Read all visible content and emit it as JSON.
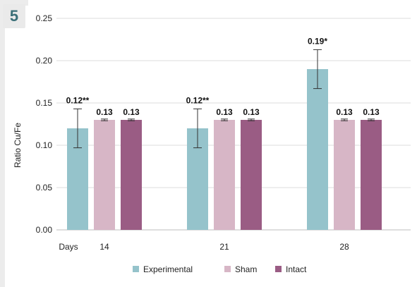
{
  "panel_label": "5",
  "chart_data": {
    "type": "bar",
    "ylabel": "Ratio Cu/Fe",
    "xlabel": "Days",
    "categories": [
      "14",
      "21",
      "28"
    ],
    "ylim": [
      0,
      0.25
    ],
    "yticks": [
      "0.00",
      "0.05",
      "0.10",
      "0.15",
      "0.20",
      "0.25"
    ],
    "grid": true,
    "legend_position": "bottom",
    "series": [
      {
        "name": "Experimental",
        "color": "#95c3cb",
        "values": [
          0.12,
          0.12,
          0.19
        ],
        "errors": [
          0.023,
          0.023,
          0.023
        ],
        "labels": [
          "0.12**",
          "0.12**",
          "0.19*"
        ]
      },
      {
        "name": "Sham",
        "color": "#d7b6c6",
        "values": [
          0.13,
          0.13,
          0.13
        ],
        "errors": [
          0.001,
          0.001,
          0.001
        ],
        "labels": [
          "0.13",
          "0.13",
          "0.13"
        ]
      },
      {
        "name": "Intact",
        "color": "#9a5c84",
        "values": [
          0.13,
          0.13,
          0.13
        ],
        "errors": [
          0.001,
          0.001,
          0.001
        ],
        "labels": [
          "0.13",
          "0.13",
          "0.13"
        ]
      }
    ]
  }
}
